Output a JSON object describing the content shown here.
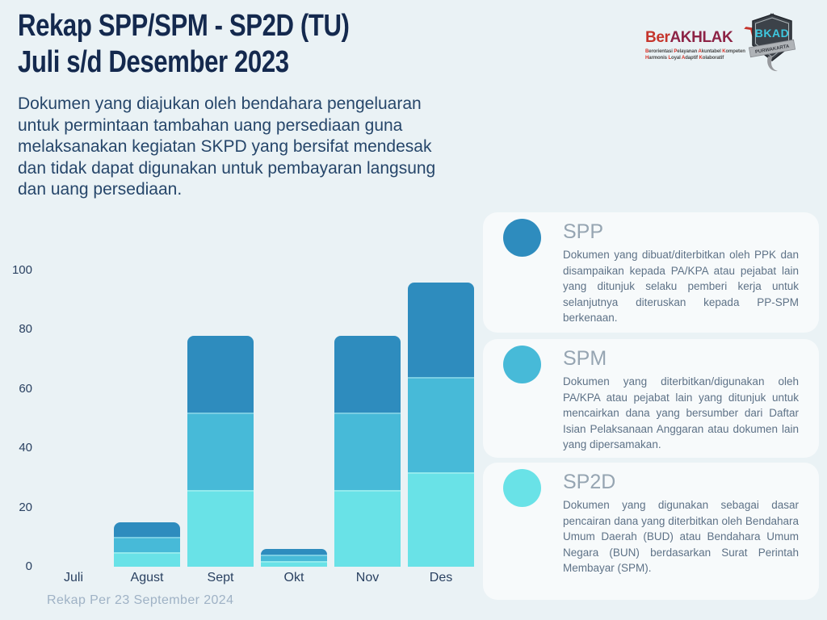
{
  "header": {
    "title_line1": "Rekap SPP/SPM - SP2D (TU)",
    "title_line2": "Juli s/d Desember 2023",
    "description": "Dokumen yang diajukan oleh bendahara pengeluaran untuk permintaan tambahan uang persediaan guna melaksanakan kegiatan SKPD yang bersifat mendesak dan tidak dapat digunakan untuk pembayaran langsung dan uang persediaan."
  },
  "logos": {
    "berakhlak": {
      "text_ber": "Ber",
      "text_akhlak": "AKHLAK",
      "tagline_words": [
        "Berorientasi",
        "Pelayanan",
        "Akuntabel",
        "Kompeten",
        "Harmonis",
        "Loyal",
        "Adaptif",
        "Kolaboratif"
      ],
      "tagline_break_after_word": 4
    },
    "bkad_badge": {
      "text": "BKAD",
      "ribbon_text": "PURWAKARTA"
    }
  },
  "chart_data": {
    "type": "bar",
    "stacked": true,
    "categories": [
      "Juli",
      "Agust",
      "Sept",
      "Okt",
      "Nov",
      "Des"
    ],
    "series": [
      {
        "name": "SP2D",
        "color": "#69E2E7",
        "values": [
          0,
          5,
          26,
          2,
          26,
          32
        ]
      },
      {
        "name": "SPM",
        "color": "#47BAD8",
        "values": [
          0,
          5,
          26,
          2,
          26,
          32
        ]
      },
      {
        "name": "SPP",
        "color": "#2E8CBE",
        "values": [
          0,
          5,
          26,
          2,
          26,
          32
        ]
      }
    ],
    "totals": [
      0,
      15,
      78,
      6,
      78,
      96
    ],
    "ylim": [
      0,
      100
    ],
    "yticks": [
      0,
      20,
      40,
      60,
      80,
      100
    ],
    "grid": false,
    "legend_position": "right-cards"
  },
  "legend_cards": [
    {
      "title": "SPP",
      "color": "#2E8CBE",
      "text": "Dokumen yang dibuat/diterbitkan oleh PPK dan disampaikan kepada PA/KPA atau pejabat lain yang ditunjuk selaku pemberi kerja untuk selanjutnya diteruskan kepada PP-SPM berkenaan."
    },
    {
      "title": "SPM",
      "color": "#47BAD8",
      "text": "Dokumen yang diterbitkan/digunakan oleh PA/KPA atau pejabat lain yang ditunjuk untuk mencairkan dana yang bersumber dari Daftar Isian Pelaksanaan Anggaran atau dokumen lain yang dipersamakan."
    },
    {
      "title": "SP2D",
      "color": "#69E2E7",
      "text": "Dokumen yang digunakan sebagai dasar pencairan dana yang diterbitkan oleh Bendahara Umum Daerah (BUD) atau Bendahara Umum Negara (BUN) berdasarkan Surat Perintah Membayar (SPM)."
    }
  ],
  "footer": {
    "text": "Rekap Per 23 September 2024"
  },
  "colors": {
    "page_bg": "#EAF2F5",
    "card_bg": "#F7FAFB",
    "title": "#14294E",
    "body_text": "#26466A",
    "axis_text": "#2A4161",
    "footer_text": "#9FB2C5",
    "brand_red": "#C5352C",
    "brand_maroon": "#8D2446",
    "badge_dark": "#3C4249",
    "badge_cyan": "#3EC8DF"
  }
}
